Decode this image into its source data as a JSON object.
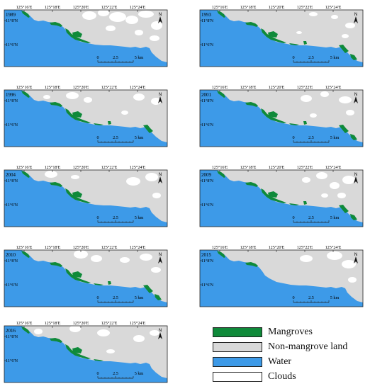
{
  "colors": {
    "mangroves": "#0f8a3a",
    "land": "#d9d9d9",
    "water": "#3d9ae8",
    "clouds": "#ffffff"
  },
  "axis": {
    "lon_labels": [
      "125°16'E",
      "125°18'E",
      "125°20'E",
      "125°22'E",
      "125°24'E"
    ],
    "lat_labels": [
      "11°8'N",
      "11°6'N"
    ]
  },
  "scalebar": {
    "labels": [
      "0",
      "2.5",
      "5 km"
    ]
  },
  "north_arrow": "north-arrow-icon",
  "panels": [
    {
      "year": "1989"
    },
    {
      "year": "1993"
    },
    {
      "year": "1996"
    },
    {
      "year": "2001"
    },
    {
      "year": "2004"
    },
    {
      "year": "2009"
    },
    {
      "year": "2010"
    },
    {
      "year": "2015"
    },
    {
      "year": "2016"
    }
  ],
  "legend": {
    "items": [
      {
        "label": "Mangroves",
        "color_key": "mangroves"
      },
      {
        "label": "Non-mangrove land",
        "color_key": "land"
      },
      {
        "label": "Water",
        "color_key": "water"
      },
      {
        "label": "Clouds",
        "color_key": "clouds"
      }
    ]
  }
}
